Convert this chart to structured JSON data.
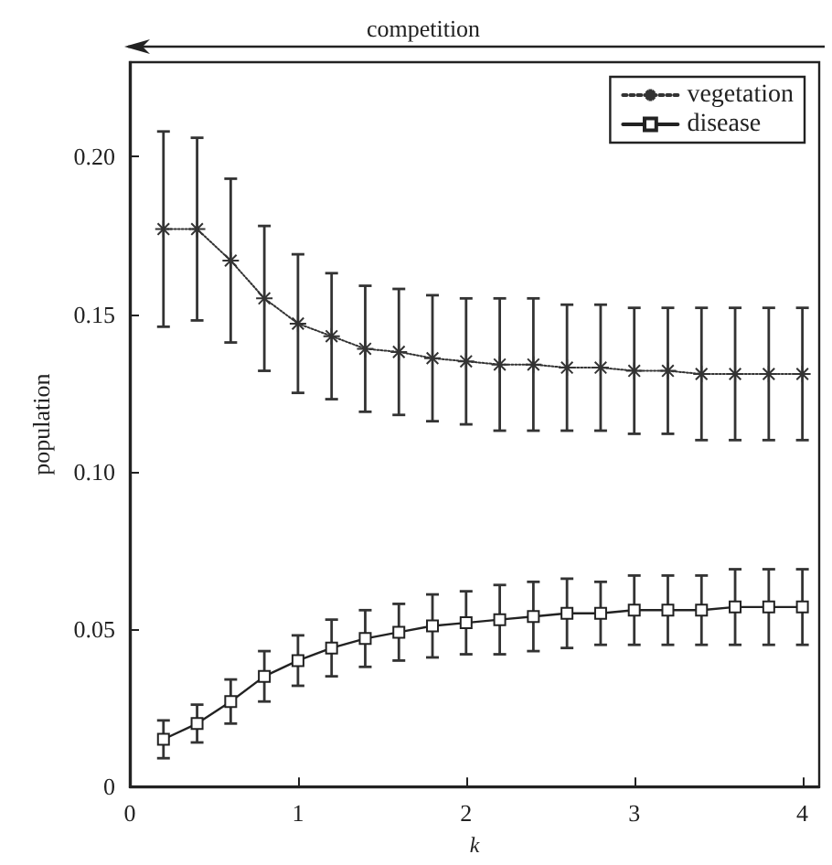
{
  "chart_data": {
    "type": "line",
    "xlabel": "k",
    "ylabel": "population",
    "annotations": [
      "competition"
    ],
    "x": [
      0.2,
      0.4,
      0.6,
      0.8,
      1.0,
      1.2,
      1.4,
      1.6,
      1.8,
      2.0,
      2.2,
      2.4,
      2.6,
      2.8,
      3.0,
      3.2,
      3.4,
      3.6,
      3.8,
      4.0
    ],
    "series": [
      {
        "name": "vegetation",
        "color": "#333333",
        "marker": "cross",
        "line_style": "dotted",
        "values": [
          0.177,
          0.177,
          0.167,
          0.155,
          0.147,
          0.143,
          0.139,
          0.138,
          0.136,
          0.135,
          0.134,
          0.134,
          0.133,
          0.133,
          0.132,
          0.132,
          0.131,
          0.131,
          0.131,
          0.131
        ],
        "errors": [
          0.031,
          0.029,
          0.026,
          0.023,
          0.022,
          0.02,
          0.02,
          0.02,
          0.02,
          0.02,
          0.021,
          0.021,
          0.02,
          0.02,
          0.02,
          0.02,
          0.021,
          0.021,
          0.021,
          0.021
        ]
      },
      {
        "name": "disease",
        "color": "#222222",
        "marker": "square",
        "line_style": "solid",
        "values": [
          0.015,
          0.02,
          0.027,
          0.035,
          0.04,
          0.044,
          0.047,
          0.049,
          0.051,
          0.052,
          0.053,
          0.054,
          0.055,
          0.055,
          0.056,
          0.056,
          0.056,
          0.057,
          0.057,
          0.057
        ],
        "errors": [
          0.006,
          0.006,
          0.007,
          0.008,
          0.008,
          0.009,
          0.009,
          0.009,
          0.01,
          0.01,
          0.011,
          0.011,
          0.011,
          0.01,
          0.011,
          0.011,
          0.011,
          0.012,
          0.012,
          0.012
        ]
      }
    ],
    "xlim": [
      0,
      4.1
    ],
    "xticks": [
      0,
      1,
      2,
      3,
      4
    ],
    "ylim": [
      0,
      0.23
    ],
    "yticks": [
      0,
      0.05,
      {
        "value": 0.1,
        "label": "0.10"
      },
      0.15,
      {
        "value": 0.2,
        "label": "0.20"
      }
    ],
    "grid": false,
    "legend": "top right"
  }
}
